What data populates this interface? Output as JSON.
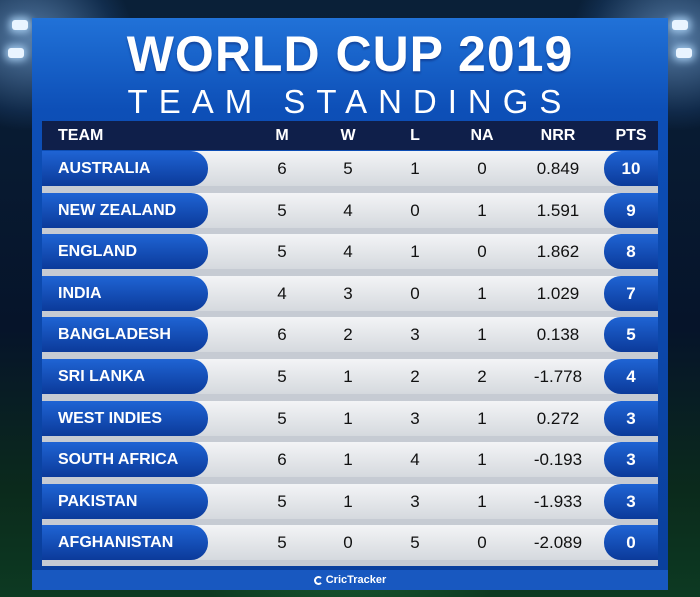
{
  "title": {
    "line1": "WORLD CUP 2019",
    "line2": "TEAM STANDINGS"
  },
  "columns": {
    "team": "TEAM",
    "m": "M",
    "w": "W",
    "l": "L",
    "na": "NA",
    "nrr": "NRR",
    "pts": "PTS"
  },
  "rows": [
    {
      "team": "AUSTRALIA",
      "m": "6",
      "w": "5",
      "l": "1",
      "na": "0",
      "nrr": "0.849",
      "pts": "10"
    },
    {
      "team": "NEW ZEALAND",
      "m": "5",
      "w": "4",
      "l": "0",
      "na": "1",
      "nrr": "1.591",
      "pts": "9"
    },
    {
      "team": "ENGLAND",
      "m": "5",
      "w": "4",
      "l": "1",
      "na": "0",
      "nrr": "1.862",
      "pts": "8"
    },
    {
      "team": "INDIA",
      "m": "4",
      "w": "3",
      "l": "0",
      "na": "1",
      "nrr": "1.029",
      "pts": "7"
    },
    {
      "team": "BANGLADESH",
      "m": "6",
      "w": "2",
      "l": "3",
      "na": "1",
      "nrr": "0.138",
      "pts": "5"
    },
    {
      "team": "SRI LANKA",
      "m": "5",
      "w": "1",
      "l": "2",
      "na": "2",
      "nrr": "-1.778",
      "pts": "4"
    },
    {
      "team": "WEST INDIES",
      "m": "5",
      "w": "1",
      "l": "3",
      "na": "1",
      "nrr": "0.272",
      "pts": "3"
    },
    {
      "team": "SOUTH AFRICA",
      "m": "6",
      "w": "1",
      "l": "4",
      "na": "1",
      "nrr": "-0.193",
      "pts": "3"
    },
    {
      "team": "PAKISTAN",
      "m": "5",
      "w": "1",
      "l": "3",
      "na": "1",
      "nrr": "-1.933",
      "pts": "3"
    },
    {
      "team": "AFGHANISTAN",
      "m": "5",
      "w": "0",
      "l": "5",
      "na": "0",
      "nrr": "-2.089",
      "pts": "0"
    }
  ],
  "footer": {
    "brand": "CricTracker"
  },
  "colors": {
    "primary_blue": "#0d4fb7",
    "header_navy": "#0f1f4a",
    "row_grey": "#e4e7eb"
  }
}
